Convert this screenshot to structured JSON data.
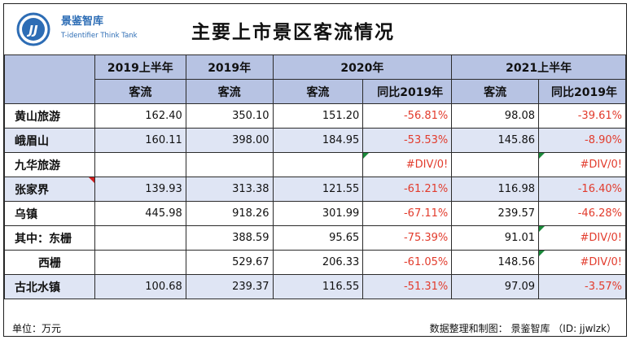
{
  "header": {
    "brand_cn": "景鉴智库",
    "brand_en": "T-identifier Think Tank",
    "title": "主要上市景区客流情况"
  },
  "columns": {
    "group": [
      "2019上半年",
      "2019年",
      "2020年",
      "2021上半年"
    ],
    "sub": [
      "客流",
      "客流",
      "客流",
      "同比2019年",
      "客流",
      "同比2019年"
    ]
  },
  "rows": [
    {
      "name": "黄山旅游",
      "c2019h1": "162.40",
      "c2019": "350.10",
      "c2020": "151.20",
      "y2020": "-56.81%",
      "c2021h1": "98.08",
      "y2021": "-39.61%"
    },
    {
      "name": "峨眉山",
      "c2019h1": "160.11",
      "c2019": "398.00",
      "c2020": "184.95",
      "y2020": "-53.53%",
      "c2021h1": "145.86",
      "y2021": "-8.90%"
    },
    {
      "name": "九华旅游",
      "c2019h1": "",
      "c2019": "",
      "c2020": "",
      "y2020": "#DIV/0!",
      "c2021h1": "",
      "y2021": "#DIV/0!"
    },
    {
      "name": "张家界",
      "c2019h1": "139.93",
      "c2019": "313.38",
      "c2020": "121.55",
      "y2020": "-61.21%",
      "c2021h1": "116.98",
      "y2021": "-16.40%"
    },
    {
      "name": "乌镇",
      "c2019h1": "445.98",
      "c2019": "918.26",
      "c2020": "301.99",
      "y2020": "-67.11%",
      "c2021h1": "239.57",
      "y2021": "-46.28%"
    },
    {
      "name": "其中：东栅",
      "c2019h1": "",
      "c2019": "388.59",
      "c2020": "95.65",
      "y2020": "-75.39%",
      "c2021h1": "91.01",
      "y2021": "#DIV/0!"
    },
    {
      "name": "西栅",
      "c2019h1": "",
      "c2019": "529.67",
      "c2020": "206.33",
      "y2020": "-61.05%",
      "c2021h1": "148.56",
      "y2021": "#DIV/0!"
    },
    {
      "name": "古北水镇",
      "c2019h1": "100.68",
      "c2019": "239.37",
      "c2020": "116.55",
      "y2020": "-51.31%",
      "c2021h1": "97.09",
      "y2021": "-3.57%"
    }
  ],
  "footer": {
    "unit": "单位：万元",
    "credit": "数据整理和制图：  景鉴智库  （ID: jjwlzk）"
  },
  "colors": {
    "header_bg": "#b7c3e3",
    "alt_row_bg": "#dfe5f4",
    "negative": "#e23b2c",
    "brand": "#2d6db5"
  }
}
